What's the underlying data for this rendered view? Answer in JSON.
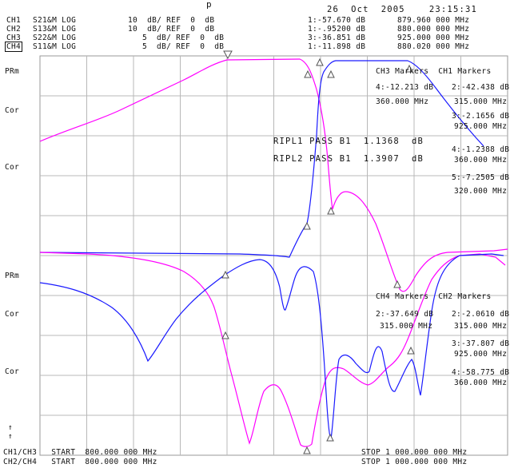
{
  "title_fragment": "p",
  "datetime": "26  Oct  2005    23:15:31",
  "channels": [
    {
      "id": "CH1",
      "param": "S21&M LOG",
      "scale": "10  dB/ REF  0  dB"
    },
    {
      "id": "CH2",
      "param": "S13&M LOG",
      "scale": "10  dB/ REF  0  dB"
    },
    {
      "id": "CH3",
      "param": "S22&M LOG",
      "scale": "5  dB/ REF  0  dB"
    },
    {
      "id": "CH4",
      "param": "S11&M LOG",
      "scale": "5  dB/ REF  0  dB"
    }
  ],
  "top_markers": [
    {
      "idx": "1:",
      "value": "-57.670 dB",
      "freq": "879.960 000 MHz"
    },
    {
      "idx": "1:",
      "value": "-.95200 dB",
      "freq": "880.000 000 MHz"
    },
    {
      "idx": "3:",
      "value": "-36.851 dB",
      "freq": "925.000 000 MHz"
    },
    {
      "idx": "1:",
      "value": "-11.898 dB",
      "freq": "880.020 000 MHz"
    }
  ],
  "side_labels": {
    "prm_top": "PRm",
    "cor1": "Cor",
    "cor2": "Cor",
    "prm_bot": "PRm",
    "cor3": "Cor",
    "cor4": "Cor",
    "arrow1": "↑",
    "arrow2": "↑"
  },
  "ch3_markers": {
    "header": "CH3 Markers  CH1 Markers",
    "m4": "4:-12.213 dB",
    "m4f": "360.000 MHz",
    "m2": "2:-42.438 dB",
    "m2f": "315.000 MHz",
    "m3": "3:-2.1656 dB",
    "m3f": "925.000 MHz",
    "m4b": "4:-1.2388 dB",
    "m4bf": "360.000 MHz",
    "m5": "5:-7.2505 dB",
    "m5f": "320.000 MHz"
  },
  "limit_tests": [
    "RIPL1 PASS B1  1.1368  dB",
    "RIPL2 PASS B1  1.3907  dB"
  ],
  "ch4_markers": {
    "header": "CH4 Markers  CH2 Markers",
    "m2": "2:-37.649 dB",
    "m2f": "315.000 MHz",
    "m2b": "2:-2.0610 dB",
    "m2bf": "315.000 MHz",
    "m3": "3:-37.807 dB",
    "m3f": "925.000 MHz",
    "m4": "4:-58.775 dB",
    "m4f": "360.000 MHz"
  },
  "footer": {
    "l1": "CH1/CH3   START  800.000 000 MHz",
    "l2": "CH2/CH4   START  800.000 000 MHz",
    "r1": "STOP 1 000.000 000 MHz",
    "r2": "STOP 1 000.000 000 MHz"
  },
  "colors": {
    "magenta": "#ff00ff",
    "blue": "#1a1aff",
    "grid": "#b8b8b8"
  }
}
